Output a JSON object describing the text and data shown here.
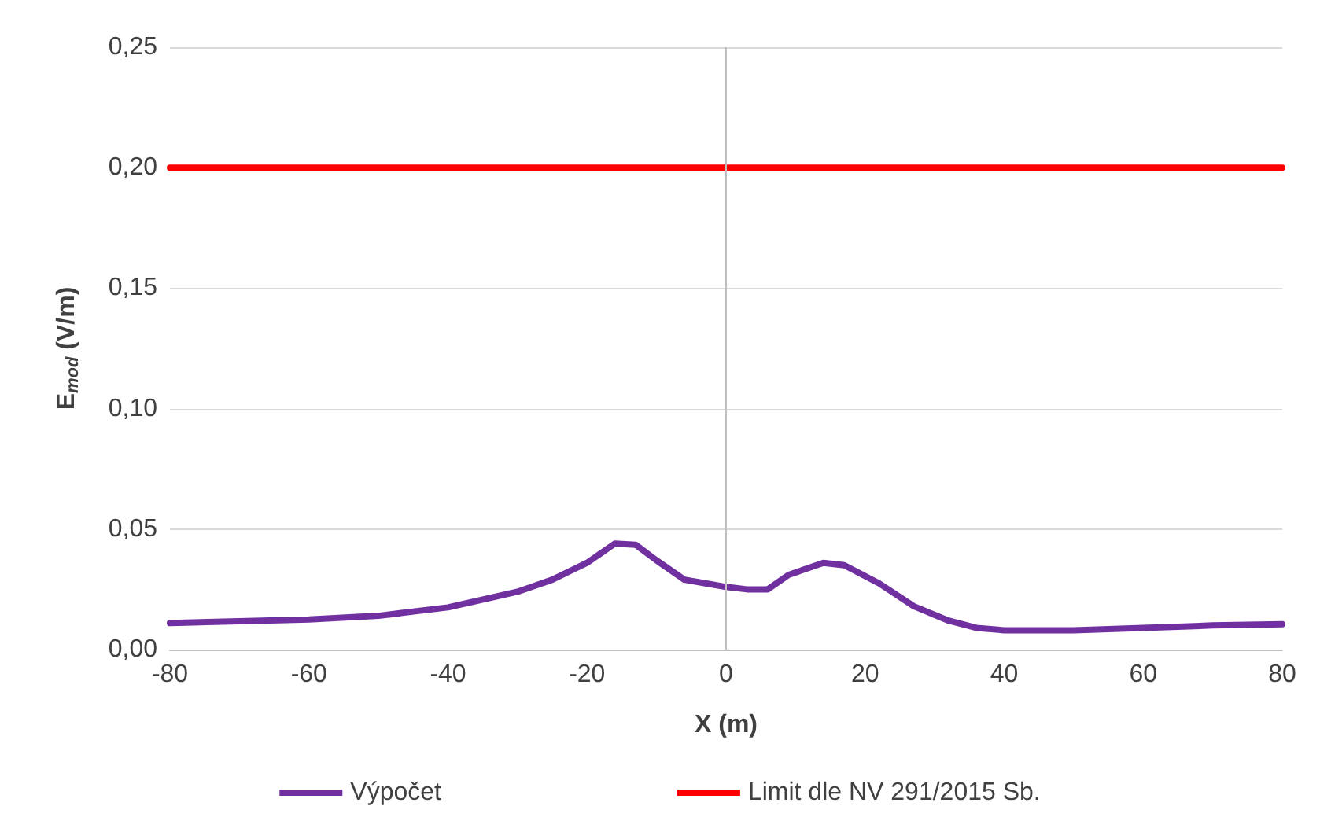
{
  "chart_data": {
    "type": "line",
    "xlabel": "X (m)",
    "ylabel": "E$_{mod}$ (V/m)",
    "xlim": [
      -80,
      80
    ],
    "xticks": [
      -80,
      -60,
      -40,
      -20,
      0,
      20,
      40,
      60,
      80
    ],
    "ylim": [
      0,
      0.25
    ],
    "yticks": [
      {
        "value": 0,
        "label": "0,00"
      },
      {
        "value": 0.05,
        "label": "0,05"
      },
      {
        "value": 0.1,
        "label": "0,10"
      },
      {
        "value": 0.15,
        "label": "0,15"
      },
      {
        "value": 0.2,
        "label": "0,20"
      },
      {
        "value": 0.25,
        "label": "0,25"
      }
    ],
    "series": [
      {
        "name": "Výpočet",
        "color": "#7030a0",
        "x": [
          -80,
          -60,
          -50,
          -40,
          -30,
          -25,
          -20,
          -16,
          -13,
          -10,
          -6,
          -2,
          0,
          3,
          6,
          9,
          14,
          17,
          22,
          27,
          32,
          36,
          40,
          50,
          60,
          70,
          80
        ],
        "values": [
          0.011,
          0.0125,
          0.014,
          0.0175,
          0.024,
          0.029,
          0.036,
          0.044,
          0.0435,
          0.037,
          0.029,
          0.027,
          0.026,
          0.025,
          0.025,
          0.031,
          0.036,
          0.035,
          0.0275,
          0.018,
          0.012,
          0.009,
          0.008,
          0.008,
          0.009,
          0.01,
          0.0105
        ]
      },
      {
        "name": "Limit dle NV 291/2015 Sb.",
        "color": "#ff0000",
        "x": [
          -80,
          80
        ],
        "values": [
          0.2,
          0.2
        ]
      }
    ],
    "ref_lines": [
      {
        "axis": "x",
        "value": 0,
        "color": "#bfbfbf"
      }
    ],
    "grid": "y",
    "legend": "bottom",
    "marker": "none",
    "line_style": "solid"
  }
}
